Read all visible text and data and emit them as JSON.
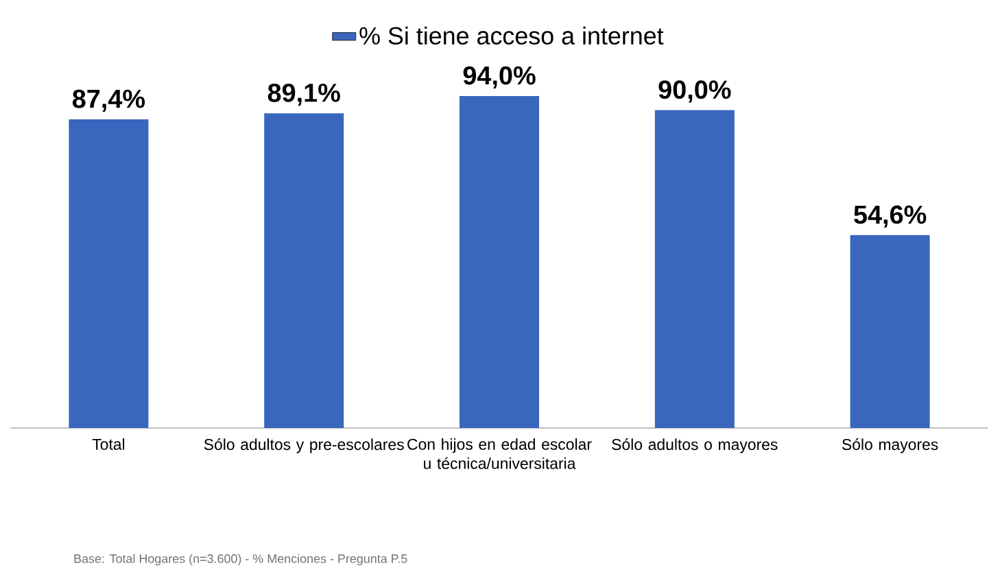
{
  "chart_data": {
    "type": "bar",
    "categories": [
      "Total",
      "Sólo adultos y pre-escolares",
      "Con hijos en edad escolar u técnica/universitaria",
      "Sólo adultos o mayores",
      "Sólo mayores"
    ],
    "series": [
      {
        "name": "% Si tiene acceso a internet",
        "color": "#3a66bd",
        "values": [
          87.4,
          89.1,
          94.0,
          90.0,
          54.6
        ],
        "value_labels": [
          "87,4%",
          "89,1%",
          "94,0%",
          "90,0%",
          "54,6%"
        ]
      }
    ],
    "legend": "top",
    "annotations": [
      "Base: Total Hogares (n=3.600) - % Menciones - Pregunta  P.5"
    ]
  }
}
